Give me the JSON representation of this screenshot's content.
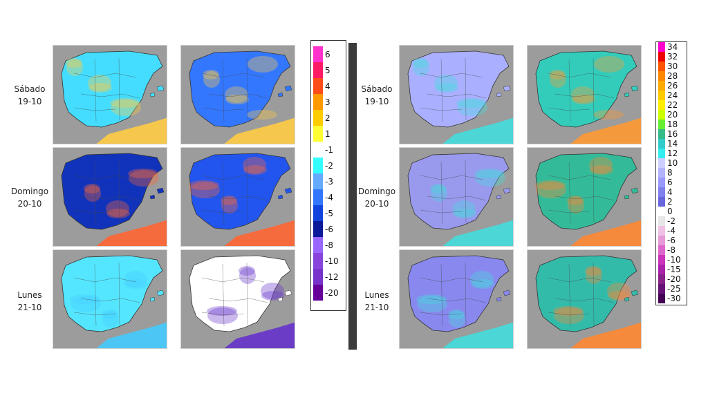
{
  "rows": [
    {
      "day": "Sábado",
      "date": "19-10"
    },
    {
      "day": "Domingo",
      "date": "20-10"
    },
    {
      "day": "Lunes",
      "date": "21-10"
    }
  ],
  "left_legend": {
    "labels": [
      "6",
      "5",
      "4",
      "3",
      "2",
      "1",
      "-1",
      "-2",
      "-3",
      "-4",
      "-5",
      "-6",
      "-8",
      "-10",
      "-12",
      "-20"
    ],
    "colors": [
      "#ff33cc",
      "#ff1a66",
      "#ff4d1a",
      "#ff9900",
      "#ffcc00",
      "#ffff33",
      "#ffffff",
      "#33ffff",
      "#66aaff",
      "#3377ff",
      "#1144dd",
      "#0a1a99",
      "#9966ff",
      "#8844dd",
      "#7733cc",
      "#660099"
    ]
  },
  "right_legend": {
    "labels": [
      "34",
      "32",
      "30",
      "28",
      "26",
      "24",
      "22",
      "20",
      "18",
      "16",
      "14",
      "12",
      "10",
      "8",
      "6",
      "4",
      "2",
      "0",
      "-2",
      "-4",
      "-6",
      "-8",
      "-10",
      "-15",
      "-20",
      "-25",
      "-30"
    ],
    "colors": [
      "#ff00cc",
      "#ee0000",
      "#ff5500",
      "#ff8800",
      "#ffaa00",
      "#ffcc00",
      "#ffee00",
      "#ccff00",
      "#66ee33",
      "#33bb88",
      "#33cccc",
      "#33eeee",
      "#cccfff",
      "#b3b3ff",
      "#9999ff",
      "#8080ee",
      "#6666dd",
      "#ffffff",
      "#e6e6e6",
      "#f0c0e6",
      "#e699d6",
      "#dd66cc",
      "#cc33bb",
      "#aa22aa",
      "#882288",
      "#661177",
      "#440055"
    ]
  },
  "maps": {
    "left": [
      {
        "base": "#44ddff",
        "sea_blob": "#ffcc44"
      },
      {
        "base": "#3377ff",
        "sea_blob": "#ffcc44"
      },
      {
        "base": "#1133bb",
        "sea_blob": "#ff6633"
      },
      {
        "base": "#2255ee",
        "sea_blob": "#ff6633"
      },
      {
        "base": "#55e6ff",
        "sea_blob": "#44ccff"
      },
      {
        "base": "#ffffff",
        "sea_blob": "#6633cc"
      }
    ],
    "right": [
      {
        "base": "#aab0ff",
        "sea_blob": "#44dddd"
      },
      {
        "base": "#33ccbb",
        "sea_blob": "#ff9933"
      },
      {
        "base": "#9999ee",
        "sea_blob": "#44dddd"
      },
      {
        "base": "#33bb99",
        "sea_blob": "#ff8833"
      },
      {
        "base": "#8888ee",
        "sea_blob": "#44dddd"
      },
      {
        "base": "#33bbaa",
        "sea_blob": "#ff8833"
      }
    ]
  }
}
